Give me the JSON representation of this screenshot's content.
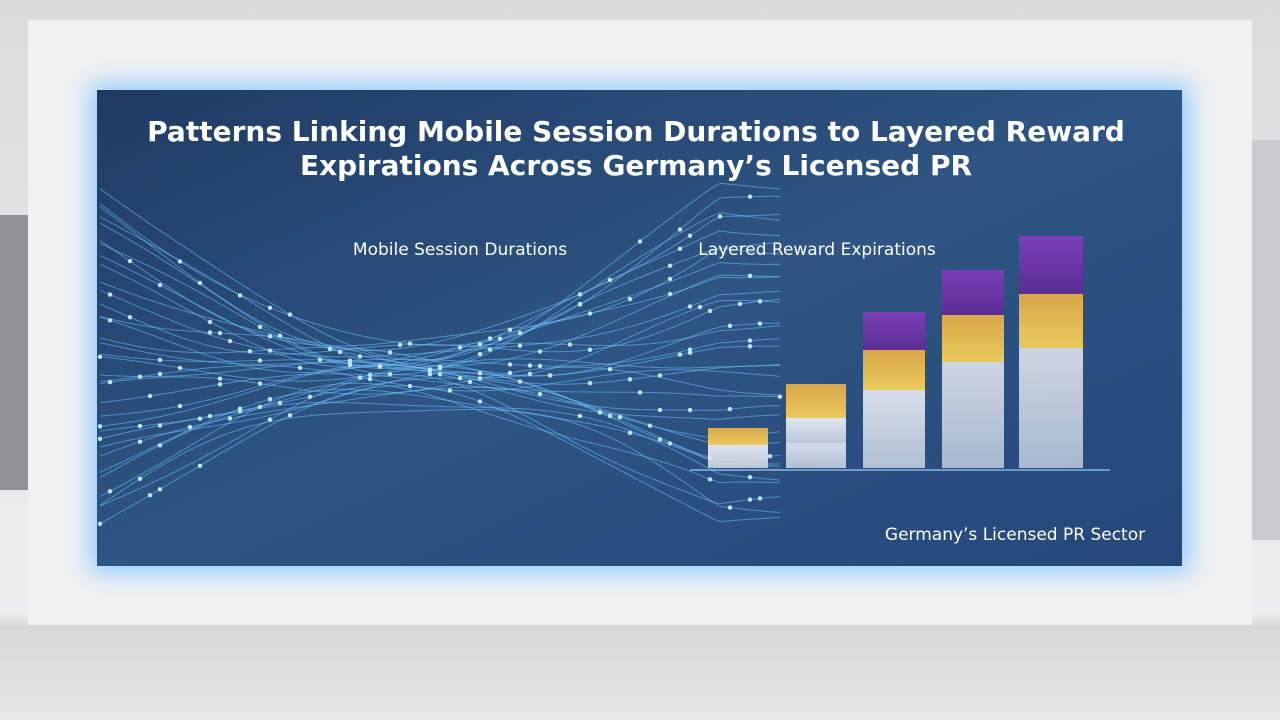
{
  "title_lines": [
    "Patterns Linking Mobile Session Durations to Layered Reward",
    "Expirations Across Germany’s Licensed PR"
  ],
  "labels": {
    "left": "Mobile Session Durations",
    "right": "Layered Reward Expirations"
  },
  "footer": "Germany’s Licensed PR Sector"
}
